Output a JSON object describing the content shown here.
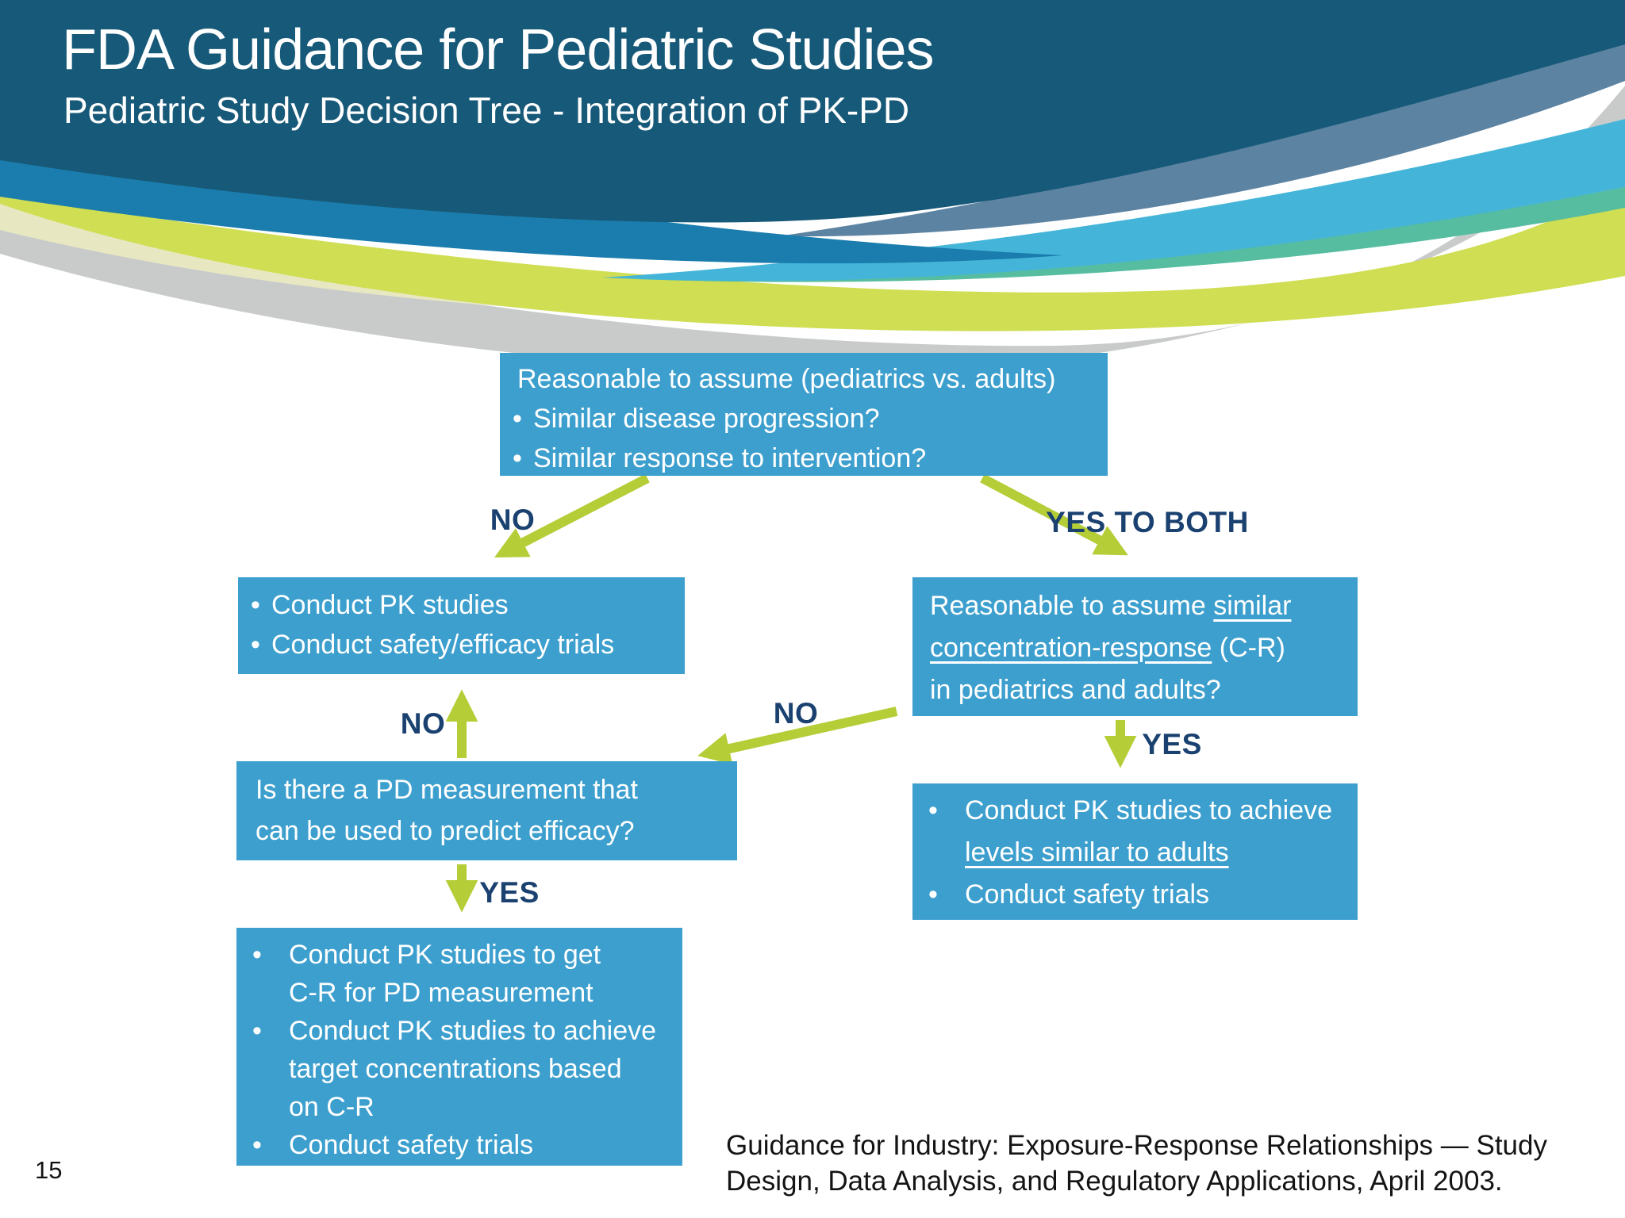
{
  "theme": {
    "background": "#ffffff",
    "header_blue": "#175978",
    "title_text": "#ffffff",
    "box_blue": "#3d9fce",
    "box_text": "#ffffff",
    "arrow_green": "#b5cd36",
    "label_navy": "#1a4170",
    "body_text": "#141414",
    "wave_medium_blue": "#1a7dad",
    "wave_steel_blue": "#5d83a2",
    "wave_cyan": "#44b5d9",
    "wave_teal": "#56bda0",
    "wave_bright_green": "#cfde52",
    "wave_pale_yellow": "#e7e8c1",
    "wave_gray": "#c9cbcb"
  },
  "header": {
    "title": "FDA Guidance for Pediatric Studies",
    "subtitle": "Pediatric Study Decision Tree - Integration of PK-PD"
  },
  "footer": {
    "source_lines": [
      "Guidance for Industry: Exposure-Response Relationships — Study",
      "Design, Data Analysis, and Regulatory Applications, April 2003."
    ],
    "page_number": "15"
  },
  "flowchart": {
    "bullet_char": "•",
    "labels": {
      "no_left": "NO",
      "yes_to_both": "YES TO BOTH",
      "no_up": "NO",
      "no_diagonal": "NO",
      "yes_right": "YES",
      "yes_left": "YES"
    },
    "boxes": [
      {
        "id": "root-question",
        "items": [
          {
            "bullet": false,
            "lines": [
              "Reasonable to assume (pediatrics vs. adults)"
            ]
          },
          {
            "bullet": true,
            "tight": true,
            "lines": [
              "Similar disease progression?"
            ]
          },
          {
            "bullet": true,
            "tight": true,
            "lines": [
              "Similar response to intervention?"
            ]
          }
        ]
      },
      {
        "id": "conduct-pk-safety-efficacy",
        "items": [
          {
            "bullet": true,
            "tight": true,
            "lines": [
              "Conduct PK studies"
            ]
          },
          {
            "bullet": true,
            "tight": true,
            "lines": [
              "Conduct safety/efficacy trials"
            ]
          }
        ]
      },
      {
        "id": "cr-question",
        "items": [
          {
            "bullet": false,
            "lines": [
              [
                {
                  "t": "Reasonable to assume "
                },
                {
                  "t": "similar",
                  "u": true
                }
              ],
              [
                {
                  "t": "concentration-response",
                  "u": true
                },
                {
                  "t": " (C-R)"
                }
              ],
              "in pediatrics and adults?"
            ]
          }
        ]
      },
      {
        "id": "pd-question",
        "items": [
          {
            "bullet": false,
            "lines": [
              "Is there a PD measurement that",
              "can be used to predict efficacy?"
            ]
          }
        ]
      },
      {
        "id": "pk-achieve-adult-levels",
        "items": [
          {
            "bullet": true,
            "lines": [
              "Conduct PK studies to achieve",
              [
                {
                  "t": "levels similar to adults",
                  "u": true
                }
              ]
            ]
          },
          {
            "bullet": true,
            "lines": [
              "Conduct safety trials"
            ]
          }
        ]
      },
      {
        "id": "pk-get-cr",
        "items": [
          {
            "bullet": true,
            "lines": [
              "Conduct PK studies to get",
              "C-R for PD measurement"
            ]
          },
          {
            "bullet": true,
            "lines": [
              "Conduct PK studies to achieve",
              "target concentrations based",
              "on C-R"
            ]
          },
          {
            "bullet": true,
            "lines": [
              "Conduct safety trials"
            ]
          }
        ]
      }
    ]
  }
}
